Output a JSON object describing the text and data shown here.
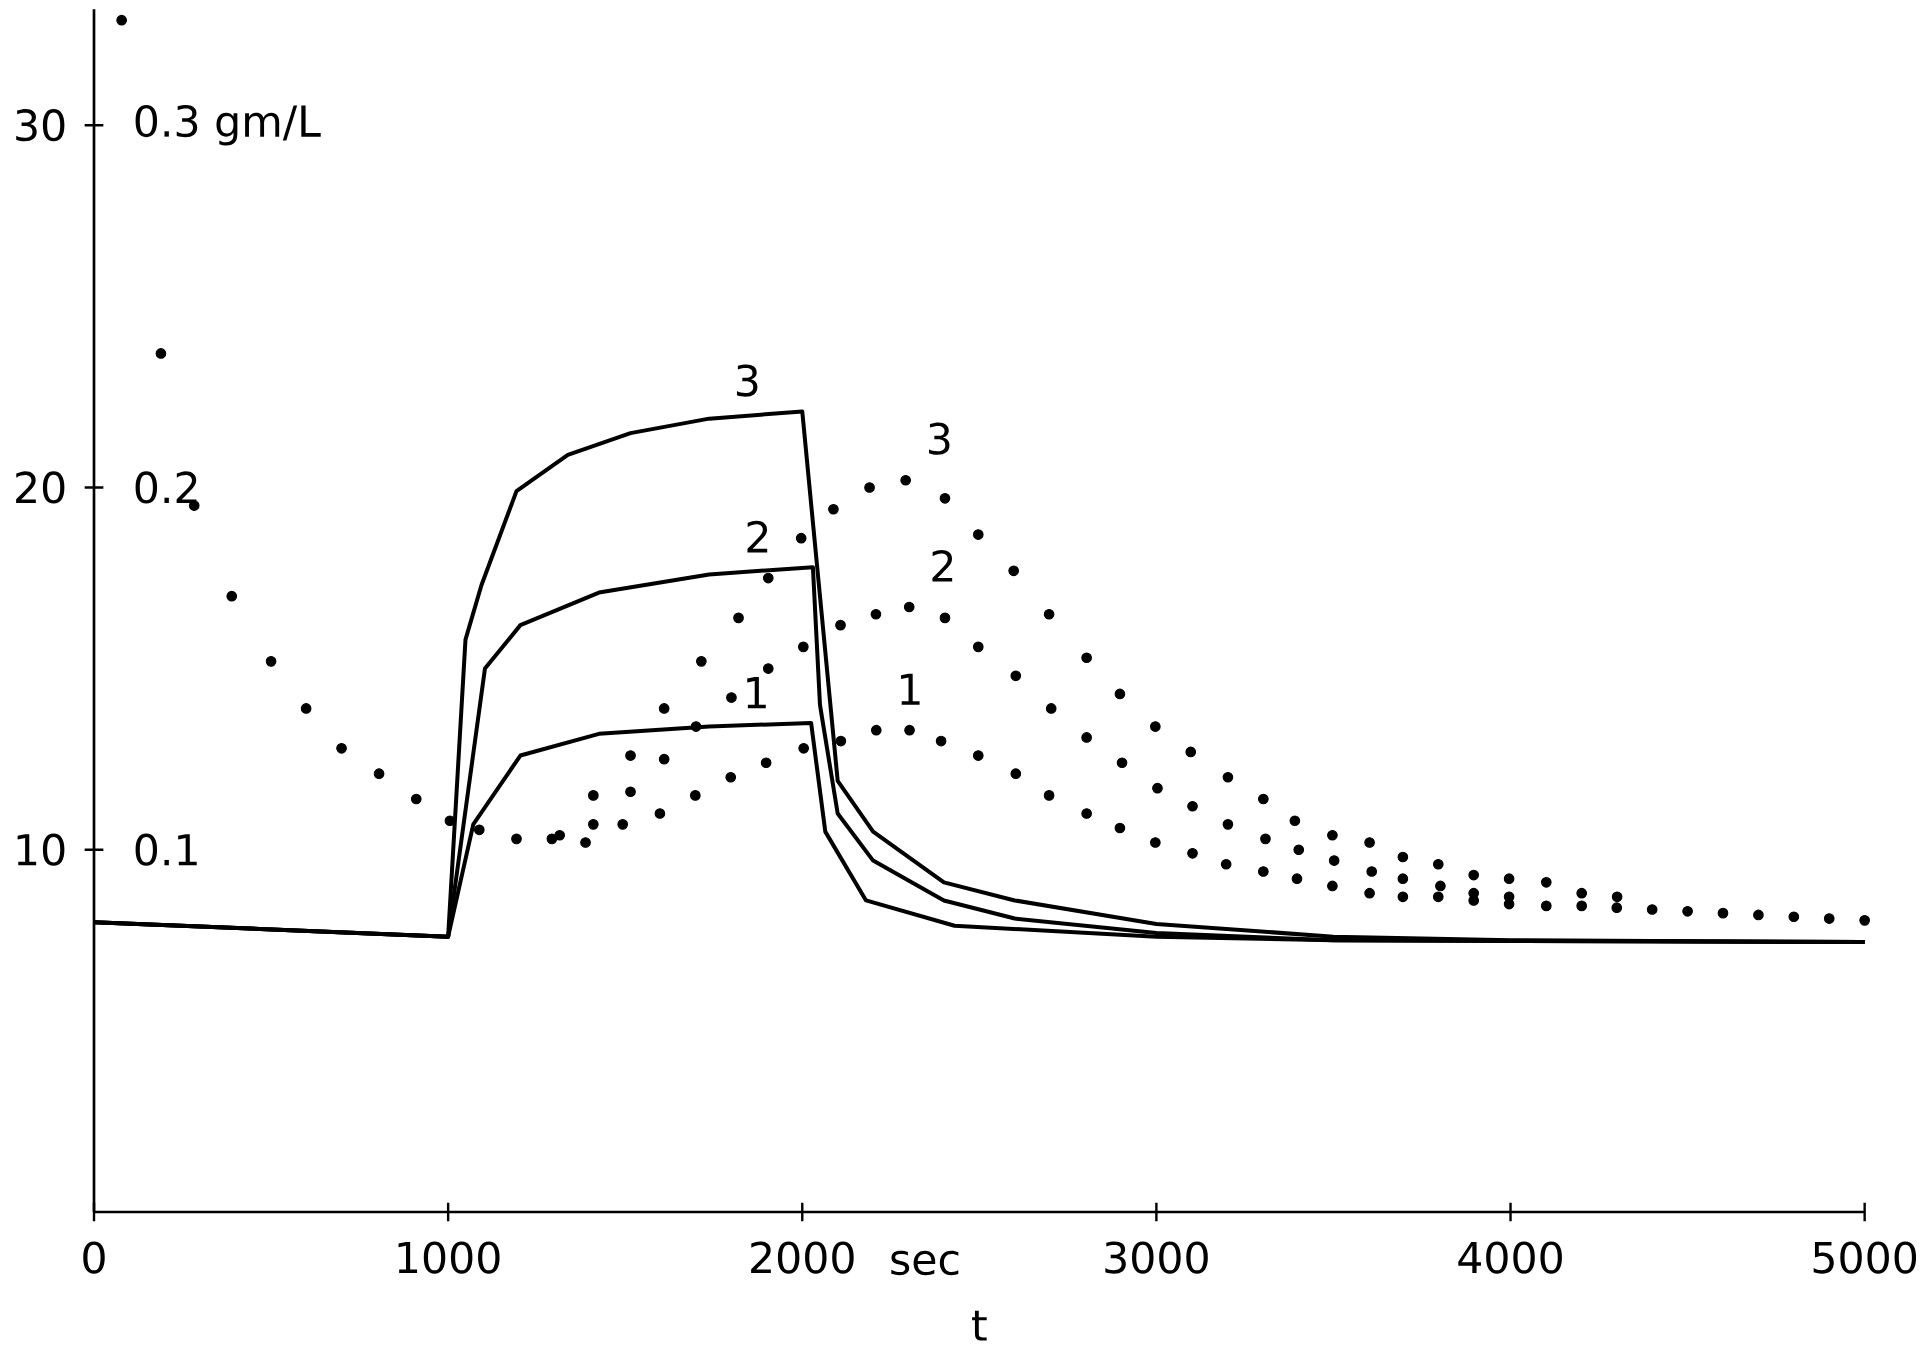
{
  "chart_data": {
    "type": "line",
    "xlabel": "t",
    "annotations": [
      "sec"
    ],
    "xlim": [
      0,
      5000
    ],
    "xticks": [
      0,
      1000,
      2000,
      3000,
      4000,
      5000
    ],
    "ylim": [
      0,
      33.2
    ],
    "yticks": [
      10,
      20,
      30
    ],
    "y2lim": [
      0,
      0.332
    ],
    "y2ticks": [
      0.1,
      0.2,
      {
        "value": 0.3,
        "label": "0.3 gm/L"
      }
    ],
    "series": [
      {
        "name": "1",
        "type": "line",
        "color": "#000000",
        "x": [
          0,
          1000,
          1071,
          1204,
          1426,
          1737,
          2025,
          2065,
          2180,
          2430,
          3000,
          3500,
          5000
        ],
        "values": [
          8.0,
          7.6,
          10.7,
          12.6,
          13.2,
          13.4,
          13.5,
          10.5,
          8.6,
          7.9,
          7.6,
          7.5,
          7.45
        ]
      },
      {
        "name": "2",
        "type": "line",
        "color": "#000000",
        "x": [
          0,
          1000,
          1104,
          1204,
          1426,
          1737,
          2030,
          2050,
          2100,
          2200,
          2400,
          2600,
          3000,
          3500,
          5000
        ],
        "values": [
          8.0,
          7.6,
          15.0,
          16.2,
          17.1,
          17.6,
          17.8,
          14.0,
          11.0,
          9.7,
          8.6,
          8.1,
          7.7,
          7.5,
          7.45
        ]
      },
      {
        "name": "3",
        "type": "line",
        "color": "#000000",
        "x": [
          0,
          1000,
          1049,
          1094,
          1193,
          1338,
          1515,
          1737,
          2000,
          2100,
          2200,
          2400,
          2600,
          3000,
          3500,
          4000,
          5000
        ],
        "values": [
          8.0,
          7.6,
          15.8,
          17.3,
          19.9,
          20.9,
          21.5,
          21.9,
          22.1,
          11.9,
          10.5,
          9.1,
          8.6,
          7.95,
          7.6,
          7.5,
          7.45
        ]
      },
      {
        "name": "1",
        "type": "scatter",
        "color": "#000000",
        "x": [
          78,
          189,
          283,
          389,
          500,
          599,
          699,
          805,
          910,
          1005,
          1088,
          1193,
          1293,
          1388,
          1493,
          1598,
          1698,
          1798,
          1898,
          2004,
          2109,
          2209,
          2303,
          2392,
          2497,
          2603,
          2697,
          2803,
          2897,
          2997,
          3102,
          3197,
          3302,
          3397,
          3497,
          3602,
          3696,
          3796,
          3896,
          3996,
          4101,
          4201,
          4300,
          4400,
          4500,
          4600,
          4700,
          4800,
          4900,
          5000
        ],
        "values": [
          32.9,
          23.7,
          19.5,
          17.0,
          15.2,
          13.9,
          12.8,
          12.1,
          11.4,
          10.8,
          10.55,
          10.3,
          10.3,
          10.2,
          10.7,
          11.0,
          11.5,
          12.0,
          12.4,
          12.8,
          13.0,
          13.3,
          13.3,
          13.0,
          12.6,
          12.1,
          11.5,
          11.0,
          10.6,
          10.2,
          9.9,
          9.6,
          9.4,
          9.2,
          9.0,
          8.8,
          8.7,
          8.7,
          8.6,
          8.5,
          8.45,
          8.45,
          8.4,
          8.35,
          8.3,
          8.25,
          8.2,
          8.15,
          8.1,
          8.05
        ]
      },
      {
        "name": "2",
        "type": "scatter",
        "color": "#000000",
        "x": [
          1410,
          1515,
          1610,
          1700,
          1800,
          1904,
          2003,
          2108,
          2208,
          2302,
          2403,
          2497,
          2603,
          2703,
          2803,
          2903,
          3003,
          3102,
          3202,
          3308,
          3402,
          3502,
          3608,
          3696,
          3802,
          3896,
          3996
        ],
        "values": [
          10.7,
          11.6,
          12.5,
          13.4,
          14.2,
          15.0,
          15.6,
          16.2,
          16.5,
          16.7,
          16.4,
          15.6,
          14.8,
          13.9,
          13.1,
          12.4,
          11.7,
          11.2,
          10.7,
          10.3,
          10.0,
          9.7,
          9.4,
          9.2,
          9.0,
          8.8,
          8.7
        ]
      },
      {
        "name": "3",
        "type": "scatter",
        "color": "#000000",
        "x": [
          1315,
          1410,
          1515,
          1610,
          1715,
          1820,
          1904,
          1997,
          2088,
          2190,
          2292,
          2403,
          2497,
          2597,
          2697,
          2803,
          2897,
          2997,
          3097,
          3202,
          3302,
          3391,
          3497,
          3602,
          3696,
          3796,
          3896,
          3996,
          4101,
          4201,
          4301
        ],
        "values": [
          10.4,
          11.5,
          12.6,
          13.9,
          15.2,
          16.4,
          17.5,
          18.6,
          19.4,
          20.0,
          20.2,
          19.7,
          18.7,
          17.7,
          16.5,
          15.3,
          14.3,
          13.4,
          12.7,
          12.0,
          11.4,
          10.8,
          10.4,
          10.2,
          9.8,
          9.6,
          9.3,
          9.2,
          9.1,
          8.8,
          8.7
        ]
      }
    ]
  }
}
